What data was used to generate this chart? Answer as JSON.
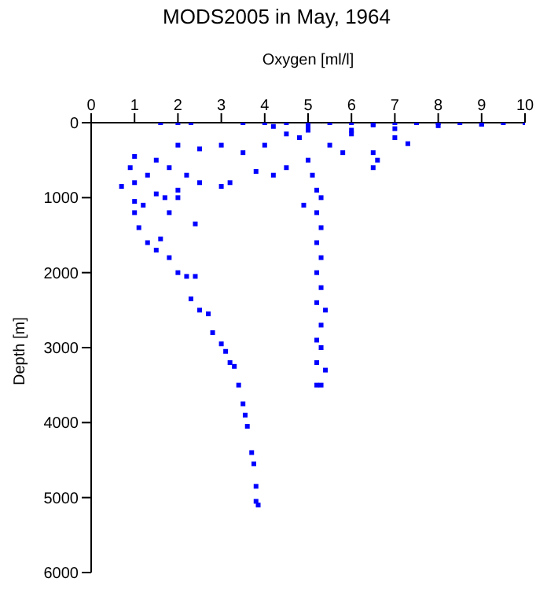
{
  "chart_data": {
    "type": "scatter",
    "title": "MODS2005 in May, 1964",
    "xlabel": "Oxygen [ml/l]",
    "ylabel": "Depth [m]",
    "xlim": [
      0,
      10
    ],
    "xticks": [
      0,
      1,
      2,
      3,
      4,
      5,
      6,
      7,
      8,
      9,
      10
    ],
    "ylim": [
      6000,
      0
    ],
    "yticks": [
      0,
      1000,
      2000,
      3000,
      4000,
      5000,
      6000
    ],
    "grid": false,
    "marker": "square",
    "series": [
      {
        "color": "#0000ff",
        "x": [
          1.6,
          2,
          2.3,
          3.5,
          4,
          4.5,
          5,
          5.5,
          6,
          6.5,
          7,
          7.5,
          8,
          8.5,
          9,
          9.5,
          10,
          9,
          8,
          7,
          6,
          5,
          4.5,
          6,
          7,
          7.3,
          6.5,
          6.6,
          6.5,
          4,
          3.5,
          3,
          2.5,
          2,
          1.5,
          1,
          0.9,
          0.7,
          1,
          1.3,
          1.8,
          2.2,
          2.5,
          3,
          3.2,
          2,
          1.5,
          1,
          1.2,
          1.7,
          2,
          1.8,
          1,
          1.1,
          2.4,
          1.3,
          1.5,
          1.6,
          1.8,
          2,
          2.2,
          2.4,
          2.3,
          2.5,
          2.7,
          2.8,
          3,
          3.1,
          3.2,
          3.3,
          3.4,
          3.5,
          3.55,
          3.6,
          3.7,
          3.75,
          3.8,
          3.8,
          3.85,
          5,
          5.1,
          5.2,
          4.9,
          5.3,
          5.2,
          5.3,
          5.2,
          5.3,
          5.2,
          5.3,
          5.2,
          5.4,
          5.3,
          5.2,
          5.3,
          5.2,
          5.4,
          5.3,
          5.2,
          4.8,
          5.5,
          5.8,
          4.5,
          4.2,
          3.8,
          5,
          6.5,
          4.2
        ],
        "values": [
          0,
          0,
          0,
          0,
          0,
          0,
          0,
          0,
          0,
          20,
          0,
          0,
          0,
          0,
          20,
          0,
          0,
          20,
          40,
          80,
          100,
          100,
          150,
          150,
          200,
          280,
          400,
          500,
          600,
          300,
          400,
          300,
          350,
          300,
          500,
          450,
          600,
          850,
          800,
          700,
          600,
          700,
          800,
          850,
          800,
          900,
          950,
          1050,
          1100,
          1000,
          1000,
          1200,
          1200,
          1400,
          1350,
          1600,
          1700,
          1550,
          1800,
          2000,
          2050,
          2050,
          2350,
          2500,
          2550,
          2800,
          2950,
          3050,
          3200,
          3250,
          3500,
          3750,
          3900,
          4050,
          4400,
          4550,
          4850,
          5050,
          5100,
          500,
          700,
          900,
          1100,
          1000,
          1200,
          1400,
          1600,
          1800,
          2000,
          2200,
          2400,
          2500,
          2700,
          2900,
          3000,
          3200,
          3300,
          3500,
          3500,
          200,
          300,
          400,
          600,
          700,
          650,
          60,
          30,
          50
        ]
      }
    ]
  }
}
